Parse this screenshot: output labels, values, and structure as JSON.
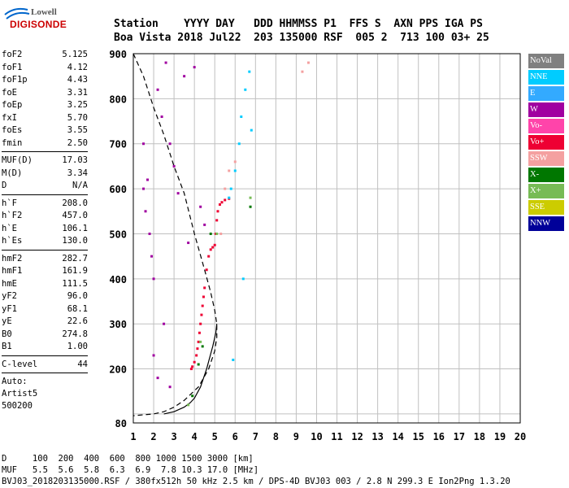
{
  "logo": {
    "line1": "Lowell",
    "line2": "DIGISONDE"
  },
  "header": {
    "row1": "Station    YYYY DAY   DDD HHMMSS P1  FFS S  AXN PPS IGA PS",
    "row2": "Boa Vista 2018 Jul22  203 135000 RSF  005 2  713 100 03+ 25"
  },
  "params_group1": [
    {
      "name": "foF2",
      "value": "5.125"
    },
    {
      "name": "foF1",
      "value": "4.12"
    },
    {
      "name": "foF1p",
      "value": "4.43"
    },
    {
      "name": "foE",
      "value": "3.31"
    },
    {
      "name": "foEp",
      "value": "3.25"
    },
    {
      "name": "fxI",
      "value": "5.70"
    },
    {
      "name": "foEs",
      "value": "3.55"
    },
    {
      "name": "fmin",
      "value": "2.50"
    }
  ],
  "params_group2": [
    {
      "name": "MUF(D)",
      "value": "17.03"
    },
    {
      "name": "M(D)",
      "value": "3.34"
    },
    {
      "name": "D",
      "value": "N/A"
    }
  ],
  "params_group3": [
    {
      "name": "h`F",
      "value": "208.0"
    },
    {
      "name": "h`F2",
      "value": "457.0"
    },
    {
      "name": "h`E",
      "value": "106.1"
    },
    {
      "name": "h`Es",
      "value": "130.0"
    }
  ],
  "params_group4": [
    {
      "name": "hmF2",
      "value": "282.7"
    },
    {
      "name": "hmF1",
      "value": "161.9"
    },
    {
      "name": "hmE",
      "value": "111.5"
    },
    {
      "name": "yF2",
      "value": "96.0"
    },
    {
      "name": "yF1",
      "value": "68.1"
    },
    {
      "name": "yE",
      "value": "22.6"
    },
    {
      "name": "B0",
      "value": "274.8"
    },
    {
      "name": "B1",
      "value": "1.00"
    }
  ],
  "params_group5": [
    {
      "name": "C-level",
      "value": "44"
    }
  ],
  "autoscale": {
    "line1": "Auto:",
    "line2": "Artist5",
    "line3": "500200"
  },
  "legend": [
    {
      "label": "NoVal",
      "color": "#808080"
    },
    {
      "label": "NNE",
      "color": "#00ccff"
    },
    {
      "label": "E",
      "color": "#33aaff"
    },
    {
      "label": "W",
      "color": "#a000a0"
    },
    {
      "label": "Vo-",
      "color": "#ff44aa"
    },
    {
      "label": "Vo+",
      "color": "#ee0033"
    },
    {
      "label": "SSW",
      "color": "#f4a0a0"
    },
    {
      "label": "X-",
      "color": "#007700"
    },
    {
      "label": "X+",
      "color": "#77bb55"
    },
    {
      "label": "SSE",
      "color": "#cccc00"
    },
    {
      "label": "NNW",
      "color": "#000099"
    }
  ],
  "footer": {
    "line1": "D     100  200  400  600  800 1000 1500 3000 [km]",
    "line2": "MUF   5.5  5.6  5.8  6.3  6.9  7.8 10.3 17.0 [MHz]",
    "line3": "BVJ03_2018203135000.RSF / 380fx512h 50 kHz 2.5 km / DPS-4D BVJ03 003 / 2.8 N 299.3 E Ion2Png 1.3.20"
  },
  "chart_data": {
    "type": "scatter",
    "xlim": [
      1,
      20
    ],
    "ylim": [
      80,
      900
    ],
    "x_ticks": [
      1,
      2,
      3,
      4,
      5,
      6,
      7,
      8,
      9,
      10,
      11,
      12,
      13,
      14,
      15,
      16,
      17,
      18,
      19,
      20
    ],
    "y_ticks": [
      80,
      100,
      200,
      300,
      400,
      500,
      600,
      700,
      800,
      900
    ],
    "y_tick_labels": [
      "80",
      "",
      "200",
      "300",
      "400",
      "500",
      "600",
      "700",
      "800",
      "900"
    ],
    "grid": true,
    "series": [
      {
        "name": "Vo+",
        "color": "#ee0033",
        "x": [
          3.85,
          3.9,
          4.0,
          4.1,
          4.15,
          4.2,
          4.25,
          4.3,
          4.35,
          4.4,
          4.45,
          4.5,
          4.6,
          4.7,
          4.8,
          4.9,
          5.0,
          5.05,
          5.1,
          5.15,
          5.25,
          5.35,
          5.5,
          5.7
        ],
        "y": [
          200,
          205,
          215,
          230,
          245,
          260,
          280,
          300,
          320,
          340,
          360,
          380,
          420,
          450,
          465,
          470,
          475,
          500,
          530,
          550,
          565,
          570,
          575,
          578
        ]
      },
      {
        "name": "W",
        "color": "#a000a0",
        "x": [
          1.5,
          1.5,
          1.6,
          1.7,
          1.8,
          1.9,
          2.0,
          2.2,
          2.4,
          2.5,
          2.6,
          2.8,
          3.0,
          3.2,
          3.5,
          3.7,
          4.0,
          4.3,
          4.5,
          2.0,
          2.2,
          2.8
        ],
        "y": [
          600,
          700,
          550,
          620,
          500,
          450,
          400,
          820,
          760,
          300,
          880,
          700,
          650,
          590,
          850,
          480,
          870,
          560,
          520,
          230,
          180,
          160
        ]
      },
      {
        "name": "NNE",
        "color": "#00ccff",
        "x": [
          5.7,
          5.8,
          6.0,
          6.2,
          6.3,
          6.5,
          6.7,
          6.8,
          5.9,
          6.4
        ],
        "y": [
          580,
          600,
          640,
          700,
          760,
          820,
          860,
          730,
          220,
          400
        ]
      },
      {
        "name": "SSW",
        "color": "#f4a0a0",
        "x": [
          5.3,
          5.5,
          5.7,
          6.0,
          9.3,
          9.6
        ],
        "y": [
          500,
          600,
          640,
          660,
          860,
          880
        ]
      },
      {
        "name": "X-",
        "color": "#007700",
        "x": [
          3.9,
          4.2,
          4.4,
          4.8,
          6.75
        ],
        "y": [
          140,
          210,
          250,
          500,
          560
        ]
      },
      {
        "name": "X+",
        "color": "#77bb55",
        "x": [
          3.7,
          4.3,
          5.1,
          6.75
        ],
        "y": [
          120,
          260,
          500,
          580
        ]
      }
    ],
    "profile_dashed": {
      "x": [
        1.0,
        1.5,
        2.0,
        2.5,
        3.0,
        3.5,
        4.0,
        4.5,
        4.8,
        5.0,
        5.1,
        5.1,
        5.0,
        4.7,
        4.2,
        3.5,
        3.0,
        2.5,
        2.0,
        1.5,
        1.0
      ],
      "y": [
        900,
        850,
        780,
        720,
        650,
        590,
        500,
        420,
        370,
        330,
        300,
        270,
        240,
        200,
        160,
        130,
        115,
        105,
        100,
        98,
        96
      ]
    },
    "profile_solid": {
      "x": [
        2.5,
        3.0,
        3.5,
        3.8,
        4.0,
        4.3,
        4.6,
        4.9,
        5.05,
        5.1
      ],
      "y": [
        100,
        105,
        115,
        125,
        135,
        160,
        200,
        250,
        280,
        300
      ]
    }
  }
}
